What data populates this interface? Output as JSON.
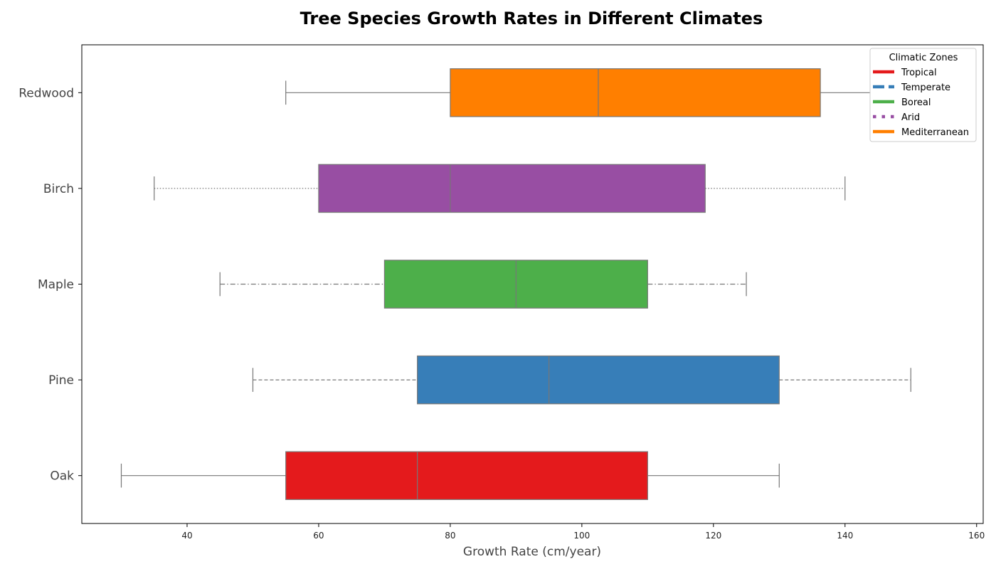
{
  "chart_data": {
    "type": "boxplot",
    "orientation": "horizontal",
    "title": "Tree Species Growth Rates in Different Climates",
    "xlabel": "Growth Rate (cm/year)",
    "ylabel": "",
    "xlim": [
      24,
      161
    ],
    "xticks": [
      40,
      60,
      80,
      100,
      120,
      140,
      160
    ],
    "grid": false,
    "legend": {
      "title": "Climatic Zones",
      "placement": "top-right",
      "entries": [
        {
          "label": "Tropical",
          "color": "#e41a1c",
          "style": "solid"
        },
        {
          "label": "Temperate",
          "color": "#377eb8",
          "style": "dashed"
        },
        {
          "label": "Boreal",
          "color": "#4daf4a",
          "style": "solid"
        },
        {
          "label": "Arid",
          "color": "#984ea3",
          "style": "dotted"
        },
        {
          "label": "Mediterranean",
          "color": "#ff7f00",
          "style": "solid"
        }
      ]
    },
    "boxes": [
      {
        "category": "Redwood",
        "whisker_low": 55,
        "q1": 80,
        "median": 102.5,
        "q3": 136.25,
        "whisker_high": 155,
        "color": "#ff7f00",
        "whisker_style": "solid"
      },
      {
        "category": "Birch",
        "whisker_low": 35,
        "q1": 60,
        "median": 80,
        "q3": 118.75,
        "whisker_high": 140,
        "color": "#984ea3",
        "whisker_style": "dotted"
      },
      {
        "category": "Maple",
        "whisker_low": 45,
        "q1": 70,
        "median": 90,
        "q3": 110,
        "whisker_high": 125,
        "color": "#4daf4a",
        "whisker_style": "dashdot"
      },
      {
        "category": "Pine",
        "whisker_low": 50,
        "q1": 75,
        "median": 95,
        "q3": 130,
        "whisker_high": 150,
        "color": "#377eb8",
        "whisker_style": "dashed"
      },
      {
        "category": "Oak",
        "whisker_low": 30,
        "q1": 55,
        "median": 75,
        "q3": 110,
        "whisker_high": 130,
        "color": "#e41a1c",
        "whisker_style": "solid"
      }
    ]
  }
}
